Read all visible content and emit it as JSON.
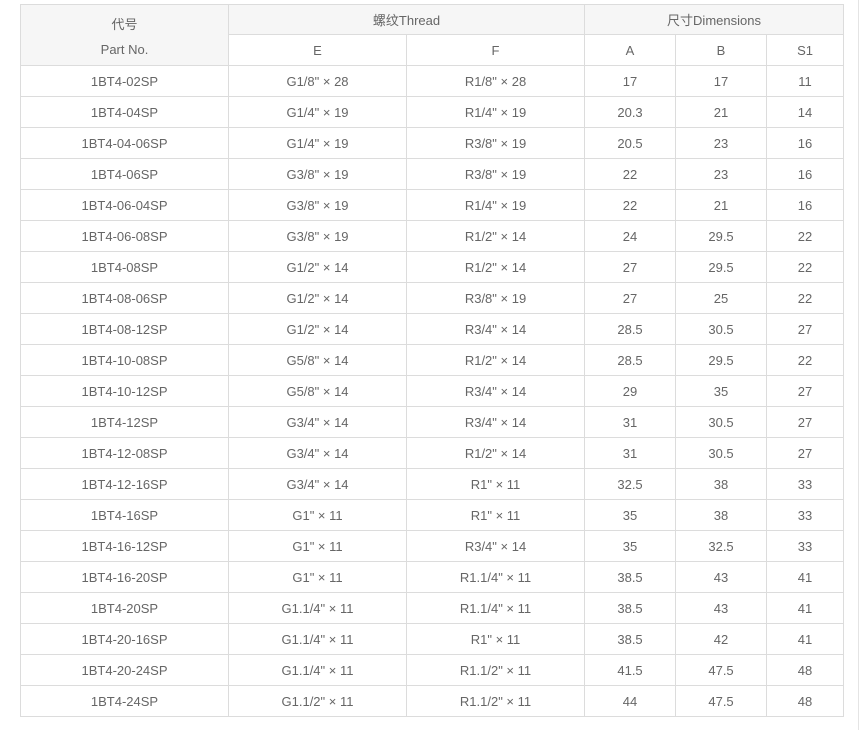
{
  "table": {
    "header": {
      "part_no_zh": "代号",
      "part_no_en": "Part No.",
      "thread_group": "螺纹Thread",
      "dimensions_group": "尺寸Dimensions",
      "sub": {
        "e": "E",
        "f": "F",
        "a": "A",
        "b": "B",
        "s1": "S1"
      }
    },
    "rows": [
      [
        "1BT4-02SP",
        "G1/8\" × 28",
        "R1/8\" × 28",
        "17",
        "17",
        "11"
      ],
      [
        "1BT4-04SP",
        "G1/4\" × 19",
        "R1/4\" × 19",
        "20.3",
        "21",
        "14"
      ],
      [
        "1BT4-04-06SP",
        "G1/4\" × 19",
        "R3/8\" × 19",
        "20.5",
        "23",
        "16"
      ],
      [
        "1BT4-06SP",
        "G3/8\" × 19",
        "R3/8\" × 19",
        "22",
        "23",
        "16"
      ],
      [
        "1BT4-06-04SP",
        "G3/8\" × 19",
        "R1/4\" × 19",
        "22",
        "21",
        "16"
      ],
      [
        "1BT4-06-08SP",
        "G3/8\" × 19",
        "R1/2\" × 14",
        "24",
        "29.5",
        "22"
      ],
      [
        "1BT4-08SP",
        "G1/2\" × 14",
        "R1/2\" × 14",
        "27",
        "29.5",
        "22"
      ],
      [
        "1BT4-08-06SP",
        "G1/2\" × 14",
        "R3/8\" × 19",
        "27",
        "25",
        "22"
      ],
      [
        "1BT4-08-12SP",
        "G1/2\" × 14",
        "R3/4\" × 14",
        "28.5",
        "30.5",
        "27"
      ],
      [
        "1BT4-10-08SP",
        "G5/8\" × 14",
        "R1/2\" × 14",
        "28.5",
        "29.5",
        "22"
      ],
      [
        "1BT4-10-12SP",
        "G5/8\" × 14",
        "R3/4\" × 14",
        "29",
        "35",
        "27"
      ],
      [
        "1BT4-12SP",
        "G3/4\" × 14",
        "R3/4\" × 14",
        "31",
        "30.5",
        "27"
      ],
      [
        "1BT4-12-08SP",
        "G3/4\" × 14",
        "R1/2\" × 14",
        "31",
        "30.5",
        "27"
      ],
      [
        "1BT4-12-16SP",
        "G3/4\" × 14",
        "R1\" × 11",
        "32.5",
        "38",
        "33"
      ],
      [
        "1BT4-16SP",
        "G1\" × 11",
        "R1\" × 11",
        "35",
        "38",
        "33"
      ],
      [
        "1BT4-16-12SP",
        "G1\" × 11",
        "R3/4\" × 14",
        "35",
        "32.5",
        "33"
      ],
      [
        "1BT4-16-20SP",
        "G1\" × 11",
        "R1.1/4\" × 11",
        "38.5",
        "43",
        "41"
      ],
      [
        "1BT4-20SP",
        "G1.1/4\" × 11",
        "R1.1/4\" × 11",
        "38.5",
        "43",
        "41"
      ],
      [
        "1BT4-20-16SP",
        "G1.1/4\" × 11",
        "R1\" × 11",
        "38.5",
        "42",
        "41"
      ],
      [
        "1BT4-20-24SP",
        "G1.1/4\" × 11",
        "R1.1/2\" × 11",
        "41.5",
        "47.5",
        "48"
      ],
      [
        "1BT4-24SP",
        "G1.1/2\" × 11",
        "R1.1/2\" × 11",
        "44",
        "47.5",
        "48"
      ]
    ],
    "colors": {
      "border": "#dcdcdc",
      "header_bg": "#f6f6f6",
      "text": "#666666",
      "body_bg": "#ffffff"
    }
  }
}
